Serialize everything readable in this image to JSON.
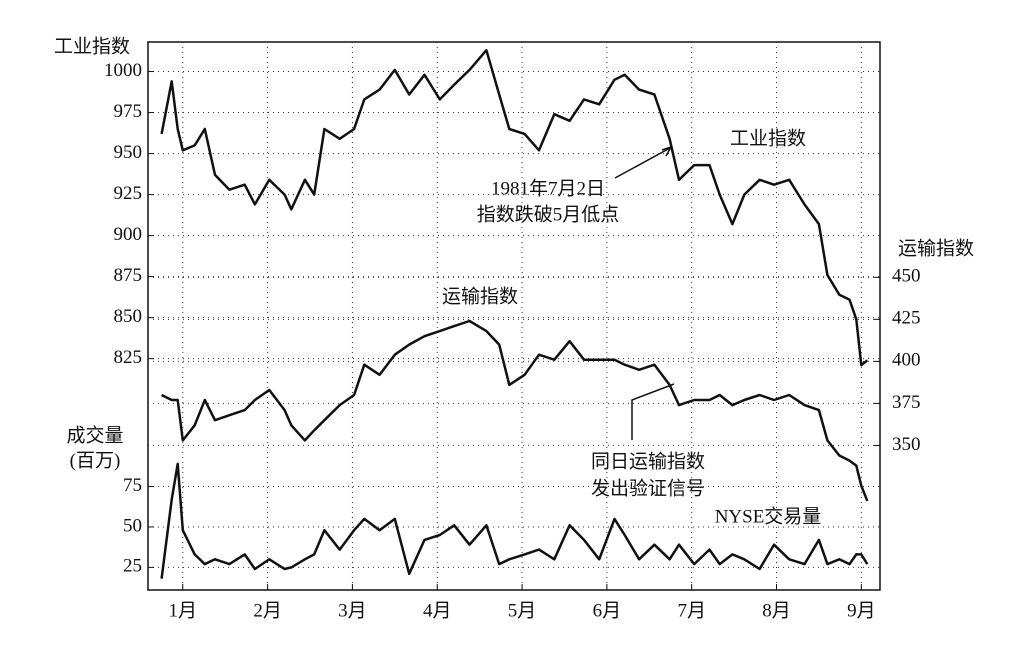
{
  "chart_data": {
    "type": "line",
    "y_label": "工业指数",
    "y2_label": "运输指数",
    "y3_label": [
      "成交量",
      "(百万)"
    ],
    "annotations": [
      {
        "lines": [
          "1981年7月2日",
          "指数跌破5月低点"
        ]
      },
      {
        "lines": [
          "同日运输指数",
          "发出验证信号"
        ]
      }
    ],
    "x": [
      0.75,
      0.87,
      0.94,
      1.0,
      1.14,
      1.26,
      1.38,
      1.55,
      1.73,
      1.85,
      2.02,
      2.2,
      2.28,
      2.44,
      2.55,
      2.67,
      2.85,
      3.02,
      3.14,
      3.32,
      3.5,
      3.67,
      3.85,
      4.03,
      4.2,
      4.38,
      4.58,
      4.73,
      4.85,
      5.03,
      5.2,
      5.38,
      5.56,
      5.73,
      5.91,
      6.09,
      6.21,
      6.38,
      6.56,
      6.74,
      6.85,
      7.03,
      7.21,
      7.33,
      7.48,
      7.62,
      7.8,
      7.97,
      8.15,
      8.33,
      8.5,
      8.6,
      8.74,
      8.86,
      8.94,
      9.0,
      9.07
    ],
    "series": [
      {
        "name": "工业指数",
        "color": "#111111",
        "axis": "y",
        "values": [
          962,
          994,
          965,
          952,
          955,
          965,
          937,
          928,
          931,
          919,
          934,
          925,
          916,
          934,
          925,
          965,
          959,
          965,
          983,
          989,
          1001,
          986,
          998,
          983,
          992,
          1001,
          1013,
          986,
          965,
          962,
          952,
          974,
          970,
          983,
          980,
          995,
          998,
          989,
          986,
          959,
          934,
          943,
          943,
          925,
          907,
          925,
          934,
          931,
          934,
          919,
          907,
          876,
          864,
          861,
          849,
          821,
          824
        ]
      },
      {
        "name": "运输指数",
        "color": "#111111",
        "axis": "y2",
        "values": [
          380,
          377,
          377,
          353,
          362,
          377,
          365,
          368,
          371,
          377,
          383,
          371,
          362,
          353,
          359,
          365,
          374,
          380,
          398,
          392,
          404,
          410,
          415,
          418,
          421,
          424,
          418,
          410,
          386,
          392,
          404,
          401,
          412,
          401,
          401,
          401,
          398,
          395,
          398,
          386,
          374,
          377,
          377,
          380,
          374,
          377,
          380,
          377,
          380,
          374,
          371,
          353,
          344,
          341,
          338,
          326,
          317
        ]
      },
      {
        "name": "NYSE交易量",
        "color": "#111111",
        "axis": "y3",
        "values": [
          18,
          67,
          89,
          48,
          33,
          27,
          30,
          27,
          33,
          24,
          30,
          24,
          25,
          30,
          33,
          48,
          36,
          48,
          55,
          48,
          55,
          21,
          42,
          45,
          51,
          39,
          51,
          27,
          30,
          33,
          36,
          30,
          51,
          42,
          30,
          55,
          45,
          30,
          39,
          30,
          39,
          27,
          36,
          27,
          33,
          30,
          24,
          39,
          30,
          27,
          42,
          27,
          30,
          27,
          33,
          33,
          27
        ]
      }
    ],
    "xlim": [
      0.59,
      9.22
    ],
    "xticks": [
      {
        "value": 1,
        "label": "1月"
      },
      {
        "value": 2,
        "label": "2月"
      },
      {
        "value": 3,
        "label": "3月"
      },
      {
        "value": 4,
        "label": "4月"
      },
      {
        "value": 5,
        "label": "5月"
      },
      {
        "value": 6,
        "label": "6月"
      },
      {
        "value": 7,
        "label": "7月"
      },
      {
        "value": 8,
        "label": "8月"
      },
      {
        "value": 9,
        "label": "9月"
      }
    ],
    "ylim": [
      684,
      1018
    ],
    "yticks": [
      825,
      850,
      875,
      900,
      925,
      950,
      975,
      1000
    ],
    "y2lim": [
      264,
      590
    ],
    "y2ticks": [
      350,
      375,
      400,
      425,
      450
    ],
    "y3lim": [
      11,
      350
    ],
    "y3ticks": [
      25,
      50,
      75
    ],
    "grid": true
  }
}
